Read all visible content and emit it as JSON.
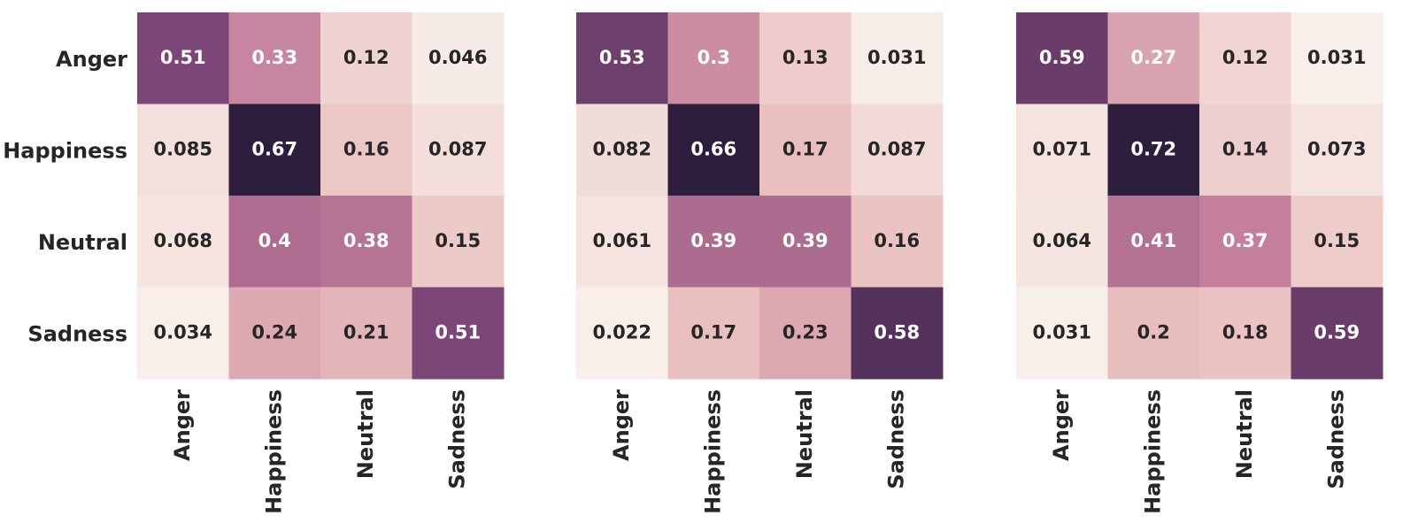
{
  "chart_data": [
    {
      "type": "heatmap",
      "x_categories": [
        "Anger",
        "Happiness",
        "Neutral",
        "Sadness"
      ],
      "y_categories": [
        "Anger",
        "Happiness",
        "Neutral",
        "Sadness"
      ],
      "values": [
        [
          0.51,
          0.33,
          0.12,
          0.046
        ],
        [
          0.085,
          0.67,
          0.16,
          0.087
        ],
        [
          0.068,
          0.4,
          0.38,
          0.15
        ],
        [
          0.034,
          0.24,
          0.21,
          0.51
        ]
      ],
      "colors": [
        "#f8efea",
        "#e8bcbc",
        "#c27d9a",
        "#7c4678",
        "#2d1e3e"
      ]
    },
    {
      "type": "heatmap",
      "x_categories": [
        "Anger",
        "Happiness",
        "Neutral",
        "Sadness"
      ],
      "values": [
        [
          0.53,
          0.3,
          0.13,
          0.031
        ],
        [
          0.082,
          0.66,
          0.17,
          0.087
        ],
        [
          0.061,
          0.39,
          0.39,
          0.16
        ],
        [
          0.022,
          0.17,
          0.23,
          0.58
        ]
      ],
      "colors": [
        "#f8efea",
        "#e8bcbc",
        "#c27d9a",
        "#7c4678",
        "#2d1e3e"
      ]
    },
    {
      "type": "heatmap",
      "x_categories": [
        "Anger",
        "Happiness",
        "Neutral",
        "Sadness"
      ],
      "values": [
        [
          0.59,
          0.27,
          0.12,
          0.031
        ],
        [
          0.071,
          0.72,
          0.14,
          0.073
        ],
        [
          0.064,
          0.41,
          0.37,
          0.15
        ],
        [
          0.031,
          0.2,
          0.18,
          0.59
        ]
      ],
      "colors": [
        "#f8efea",
        "#e8bcbc",
        "#c27d9a",
        "#7c4678",
        "#2d1e3e"
      ]
    }
  ]
}
